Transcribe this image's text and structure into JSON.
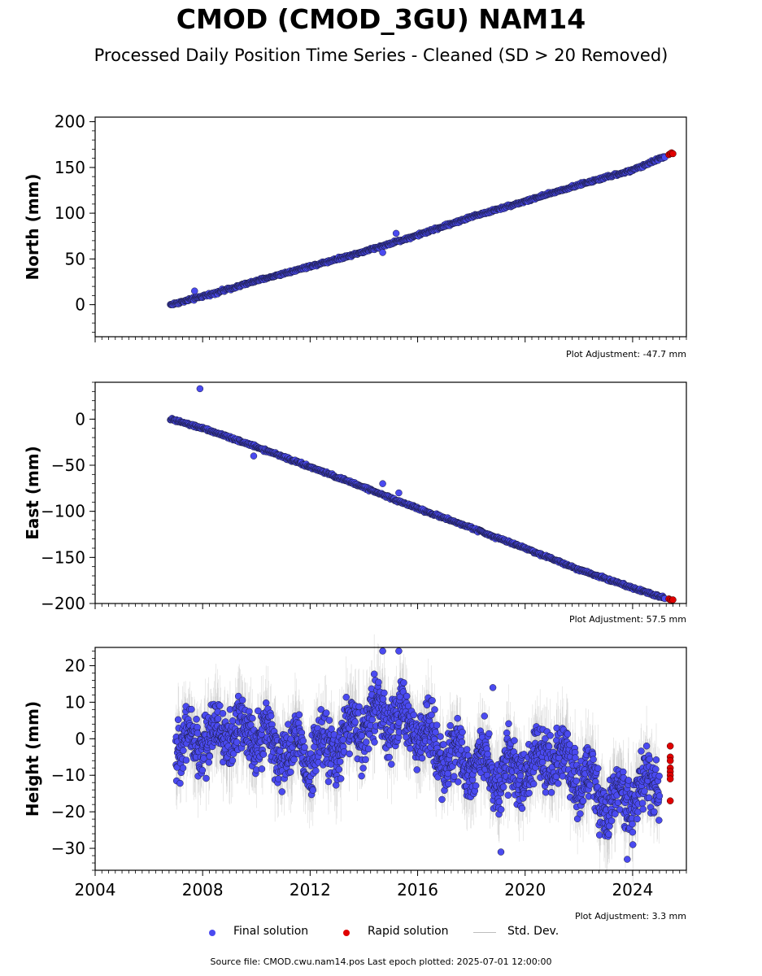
{
  "title": "CMOD (CMOD_3GU) NAM14",
  "subtitle": "Processed Daily Position Time Series - Cleaned (SD > 20 Removed)",
  "footer": "Source file: CMOD.cwu.nam14.pos  Last epoch plotted: 2025-07-01 12:00:00",
  "legend": {
    "final": "Final solution",
    "rapid": "Rapid solution",
    "std": "Std. Dev."
  },
  "colors": {
    "final": "#4a4af0",
    "rapid": "#e00000",
    "std": "#bdbdbd",
    "marker_edge": "#1a1a3a"
  },
  "chart_data": [
    {
      "type": "scatter",
      "ylabel": "North (mm)",
      "adjustment": "Plot Adjustment: -47.7 mm",
      "xlim": [
        2004.0,
        2026.0
      ],
      "ylim": [
        -35,
        205
      ],
      "yticks": [
        0,
        50,
        100,
        150,
        200
      ],
      "series": [
        {
          "name": "Final solution",
          "x": [
            2006.8,
            2008.0,
            2010.0,
            2012.0,
            2014.0,
            2016.0,
            2018.0,
            2020.0,
            2022.0,
            2024.0,
            2025.2
          ],
          "y": [
            0,
            9,
            26,
            42,
            58,
            76,
            96,
            113,
            131,
            147,
            162
          ]
        },
        {
          "name": "Rapid solution",
          "x": [
            2025.35,
            2025.4,
            2025.45,
            2025.5
          ],
          "y": [
            164,
            165,
            166,
            165
          ]
        }
      ],
      "outliers": {
        "x": [
          2007.7,
          2014.7,
          2015.2
        ],
        "y": [
          15,
          57,
          78
        ]
      }
    },
    {
      "type": "scatter",
      "ylabel": "East (mm)",
      "adjustment": "Plot Adjustment: 57.5 mm",
      "xlim": [
        2004.0,
        2026.0
      ],
      "ylim": [
        -200,
        40
      ],
      "yticks": [
        -200,
        -150,
        -100,
        -50,
        0
      ],
      "series": [
        {
          "name": "Final solution",
          "x": [
            2006.8,
            2008.0,
            2010.0,
            2012.0,
            2014.0,
            2016.0,
            2018.0,
            2020.0,
            2022.0,
            2024.0,
            2025.2
          ],
          "y": [
            0,
            -10,
            -30,
            -52,
            -74,
            -97,
            -118,
            -140,
            -163,
            -183,
            -194
          ]
        },
        {
          "name": "Rapid solution",
          "x": [
            2025.35,
            2025.4,
            2025.45,
            2025.5
          ],
          "y": [
            -195,
            -196,
            -197,
            -196
          ]
        }
      ],
      "outliers": {
        "x": [
          2007.9,
          2014.7,
          2015.3,
          2009.9
        ],
        "y": [
          33,
          -70,
          -80,
          -40
        ]
      }
    },
    {
      "type": "scatter",
      "ylabel": "Height (mm)",
      "adjustment": "Plot Adjustment: 3.3 mm",
      "xlim": [
        2004.0,
        2026.0
      ],
      "ylim": [
        -36,
        25
      ],
      "yticks": [
        -30,
        -20,
        -10,
        0,
        10,
        20
      ],
      "xticks": [
        2004,
        2008,
        2012,
        2016,
        2020,
        2024
      ],
      "series": [
        {
          "name": "Final solution",
          "x": [
            2007,
            2008,
            2009,
            2010,
            2011,
            2012,
            2013,
            2014,
            2015,
            2016,
            2017,
            2018,
            2019,
            2020,
            2021,
            2022,
            2023,
            2024,
            2025
          ],
          "y": [
            -2,
            0,
            2,
            1,
            -3,
            -4,
            -2,
            5,
            6,
            3,
            -5,
            -6,
            -10,
            -8,
            -5,
            -10,
            -18,
            -16,
            -10
          ]
        },
        {
          "name": "Rapid solution",
          "x": [
            2025.4,
            2025.4,
            2025.4,
            2025.4,
            2025.4,
            2025.4,
            2025.4,
            2025.4
          ],
          "y": [
            -2,
            -5,
            -6,
            -8,
            -9,
            -10,
            -11,
            -17
          ]
        }
      ],
      "outliers": {
        "x": [
          2015.3,
          2018.8,
          2014.7,
          2019.1,
          2023.8
        ],
        "y": [
          24,
          14,
          24,
          -31,
          -33
        ]
      }
    }
  ]
}
